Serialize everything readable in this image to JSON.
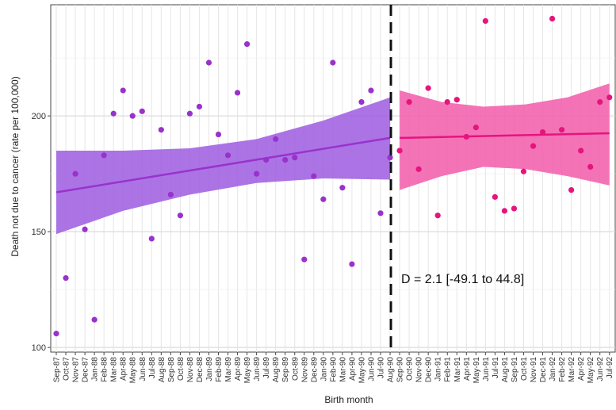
{
  "chart_data": {
    "type": "scatter",
    "xlabel": "Birth month",
    "ylabel": "Death not due to cancer (rate per 100,000)",
    "ylim": [
      98,
      248
    ],
    "yticks": [
      100,
      150,
      200
    ],
    "grid": true,
    "discontinuity_after": "Aug-90",
    "annotation": "D = 2.1 [-49.1 to 44.8]",
    "categories": [
      "Sep-87",
      "Oct-87",
      "Nov-87",
      "Dec-87",
      "Jan-88",
      "Feb-88",
      "Mar-88",
      "Apr-88",
      "May-88",
      "Jun-88",
      "Jul-88",
      "Aug-88",
      "Sep-88",
      "Oct-88",
      "Nov-88",
      "Dec-88",
      "Jan-89",
      "Feb-89",
      "Mar-89",
      "Apr-89",
      "May-89",
      "Jun-89",
      "Jul-89",
      "Aug-89",
      "Sep-89",
      "Oct-89",
      "Nov-89",
      "Dec-89",
      "Jan-90",
      "Feb-90",
      "Mar-90",
      "Apr-90",
      "May-90",
      "Jun-90",
      "Jul-90",
      "Aug-90",
      "Sep-90",
      "Oct-90",
      "Nov-90",
      "Dec-90",
      "Jan-91",
      "Feb-91",
      "Mar-91",
      "Apr-91",
      "May-91",
      "Jun-91",
      "Jul-91",
      "Aug-91",
      "Sep-91",
      "Oct-91",
      "Nov-91",
      "Dec-91",
      "Jan-92",
      "Feb-92",
      "Mar-92",
      "Apr-92",
      "May-92",
      "Jun-92",
      "Jul-92"
    ],
    "tick_labels": [
      "Sep-87",
      "Oct-87",
      "Nov-87",
      "Dec-87",
      "Jan-88",
      "Feb-88",
      "Mar-88",
      "Apr-88",
      "May-88",
      "Jun-88",
      "Jul-88",
      "Aug-88",
      "Sep-88",
      "Oct-88",
      "Nov-88",
      "Dec-88",
      "Jan-89",
      "Feb-89",
      "Mar-89",
      "Apr-89",
      "May-89",
      "Jun-89",
      "Jul-89",
      "Aug-89",
      "Sep-89",
      "Oct-89",
      "Nov-89",
      "Dec-89",
      "Jan-90",
      "Feb-90",
      "Mar-90",
      "Apr-90",
      "May-90",
      "Jun-90",
      "Jul-90",
      "Aug-90",
      "Sep-90",
      "Oct-90",
      "Nov-90",
      "Dec-90",
      "Jan-91",
      "Feb-91",
      "Mar-91",
      "Apr-91",
      "May-91",
      "Jun-91",
      "Jul-91",
      "Aug-91",
      "Sep-91",
      "Oct-91",
      "Nov-91",
      "Dec-91",
      "Jan-92",
      "Feb-92",
      "Mar-92",
      "Apr-92",
      "May-92",
      "Jun-92",
      "Jul-92"
    ],
    "series": [
      {
        "color": "#9932CC",
        "band_color": "#9E5BE0",
        "x": [
          "Sep-87",
          "Oct-87",
          "Nov-87",
          "Dec-87",
          "Jan-88",
          "Feb-88",
          "Mar-88",
          "Apr-88",
          "May-88",
          "Jun-88",
          "Jul-88",
          "Aug-88",
          "Sep-88",
          "Oct-88",
          "Nov-88",
          "Dec-88",
          "Jan-89",
          "Feb-89",
          "Mar-89",
          "Apr-89",
          "May-89",
          "Jun-89",
          "Jul-89",
          "Aug-89",
          "Sep-89",
          "Oct-89",
          "Nov-89",
          "Dec-89",
          "Jan-90",
          "Feb-90",
          "Mar-90",
          "Apr-90",
          "May-90",
          "Jun-90",
          "Jul-90",
          "Aug-90"
        ],
        "y": [
          106,
          130,
          175,
          151,
          112,
          183,
          201,
          211,
          200,
          202,
          147,
          194,
          166,
          157,
          201,
          204,
          223,
          192,
          183,
          210,
          231,
          175,
          181,
          190,
          181,
          182,
          138,
          174,
          164,
          223,
          169,
          136,
          206,
          211,
          158,
          182
        ],
        "fit": [
          167,
          190.5
        ],
        "ci_lower": [
          149,
          159,
          166,
          171,
          173,
          172.5
        ],
        "ci_upper": [
          185,
          185,
          186,
          190,
          198,
          208
        ]
      },
      {
        "color": "#E6147D",
        "band_color": "#F25BAA",
        "x": [
          "Sep-90",
          "Oct-90",
          "Nov-90",
          "Dec-90",
          "Jan-91",
          "Feb-91",
          "Mar-91",
          "Apr-91",
          "May-91",
          "Jun-91",
          "Jul-91",
          "Aug-91",
          "Sep-91",
          "Oct-91",
          "Nov-91",
          "Dec-91",
          "Jan-92",
          "Feb-92",
          "Mar-92",
          "Apr-92",
          "May-92",
          "Jun-92",
          "Jul-92"
        ],
        "y": [
          185,
          206,
          177,
          212,
          157,
          206,
          207,
          191,
          195,
          241,
          165,
          159,
          160,
          176,
          187,
          193,
          242,
          194,
          168,
          185,
          178,
          206,
          208
        ],
        "fit": [
          190.5,
          192.5
        ],
        "ci_lower": [
          168,
          174,
          178,
          177,
          174,
          170
        ],
        "ci_upper": [
          211,
          206,
          204,
          205,
          208,
          214
        ]
      }
    ]
  }
}
